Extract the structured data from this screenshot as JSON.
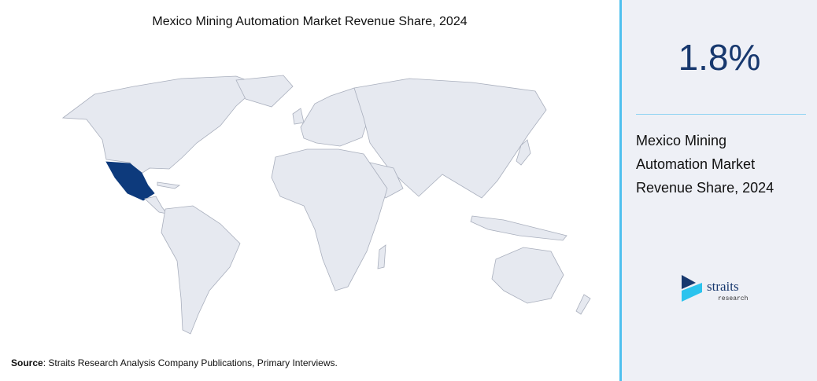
{
  "header": {
    "title": "Mexico Mining Automation Market Revenue Share, 2024"
  },
  "source": {
    "label": "Source",
    "text": ": Straits Research Analysis Company Publications, Primary Interviews."
  },
  "stat": {
    "value": "1.8%",
    "label_lines": [
      "Mexico Mining",
      "Automation Market",
      "Revenue Share, 2024"
    ]
  },
  "logo": {
    "name": "straits",
    "sub": "research"
  }
}
